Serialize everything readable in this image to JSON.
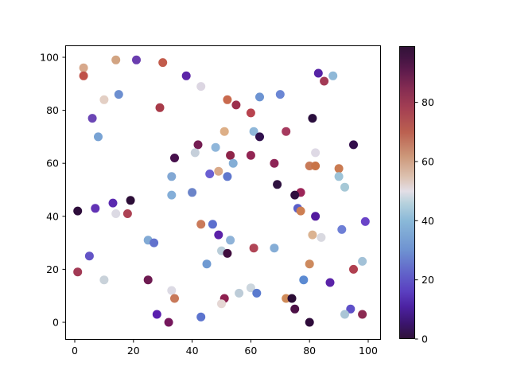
{
  "figure": {
    "background": "#ffffff"
  },
  "chart_data": {
    "type": "scatter",
    "title": "",
    "xlabel": "",
    "ylabel": "",
    "grid": false,
    "x_ticks": [
      0,
      20,
      40,
      60,
      80,
      100
    ],
    "y_ticks": [
      0,
      20,
      40,
      60,
      80,
      100
    ],
    "xlim": [
      -3.25,
      104.34
    ],
    "ylim": [
      -6.61,
      104.5
    ],
    "marker_diameter_px": 11,
    "points": [
      {
        "x": 14,
        "y": 99,
        "c": 62,
        "color": "#d2a482"
      },
      {
        "x": 21,
        "y": 99,
        "c": 14,
        "color": "#6a3daf"
      },
      {
        "x": 30,
        "y": 98,
        "c": 71,
        "color": "#c25b4b"
      },
      {
        "x": 3,
        "y": 96,
        "c": 62,
        "color": "#d7a88b"
      },
      {
        "x": 3,
        "y": 93,
        "c": 73,
        "color": "#bf5148"
      },
      {
        "x": 15,
        "y": 86,
        "c": 31,
        "color": "#6d8fd0"
      },
      {
        "x": 10,
        "y": 84,
        "c": 54,
        "color": "#e3cfc4"
      },
      {
        "x": 29,
        "y": 81,
        "c": 78,
        "color": "#a83b49"
      },
      {
        "x": 6,
        "y": 77,
        "c": 15,
        "color": "#6b46b5"
      },
      {
        "x": 8,
        "y": 70,
        "c": 33,
        "color": "#79a3d4"
      },
      {
        "x": 38,
        "y": 93,
        "c": 11,
        "color": "#5c25a8"
      },
      {
        "x": 43,
        "y": 89,
        "c": 50,
        "color": "#dcd6e2"
      },
      {
        "x": 52,
        "y": 84,
        "c": 67,
        "color": "#c96a4e"
      },
      {
        "x": 55,
        "y": 82,
        "c": 80,
        "color": "#9c2f4d"
      },
      {
        "x": 60,
        "y": 79,
        "c": 75,
        "color": "#b8434f"
      },
      {
        "x": 63,
        "y": 85,
        "c": 30,
        "color": "#6d94d2"
      },
      {
        "x": 51,
        "y": 72,
        "c": 60,
        "color": "#ddaf87"
      },
      {
        "x": 61,
        "y": 72,
        "c": 37,
        "color": "#8fb7d9"
      },
      {
        "x": 63,
        "y": 70,
        "c": 2,
        "color": "#31114e"
      },
      {
        "x": 42,
        "y": 67,
        "c": 88,
        "color": "#741d52"
      },
      {
        "x": 41,
        "y": 64,
        "c": 45,
        "color": "#c5cfda"
      },
      {
        "x": 48,
        "y": 66,
        "c": 38,
        "color": "#8fb6da"
      },
      {
        "x": 34,
        "y": 62,
        "c": 95,
        "color": "#46104c"
      },
      {
        "x": 53,
        "y": 63,
        "c": 82,
        "color": "#8e2449"
      },
      {
        "x": 60,
        "y": 63,
        "c": 84,
        "color": "#922553"
      },
      {
        "x": 54,
        "y": 60,
        "c": 35,
        "color": "#84aed6"
      },
      {
        "x": 49,
        "y": 57,
        "c": 61,
        "color": "#d9a988"
      },
      {
        "x": 46,
        "y": 56,
        "c": 21,
        "color": "#6a5fd2"
      },
      {
        "x": 52,
        "y": 55,
        "c": 27,
        "color": "#5f77cd"
      },
      {
        "x": 33,
        "y": 55,
        "c": 34,
        "color": "#82a8d4"
      },
      {
        "x": 40,
        "y": 49,
        "c": 29,
        "color": "#6b84c9"
      },
      {
        "x": 33,
        "y": 48,
        "c": 35,
        "color": "#84aed8"
      },
      {
        "x": 83,
        "y": 94,
        "c": 11,
        "color": "#5623a5"
      },
      {
        "x": 88,
        "y": 93,
        "c": 37,
        "color": "#8fb8d7"
      },
      {
        "x": 85,
        "y": 91,
        "c": 79,
        "color": "#a33a55"
      },
      {
        "x": 70,
        "y": 86,
        "c": 28,
        "color": "#6b86d4"
      },
      {
        "x": 81,
        "y": 77,
        "c": 1,
        "color": "#2a0e3d"
      },
      {
        "x": 72,
        "y": 72,
        "c": 78,
        "color": "#a63a5e"
      },
      {
        "x": 95,
        "y": 67,
        "c": 2,
        "color": "#330d4c"
      },
      {
        "x": 82,
        "y": 64,
        "c": 49,
        "color": "#ded9e5"
      },
      {
        "x": 68,
        "y": 60,
        "c": 84,
        "color": "#8e2456"
      },
      {
        "x": 80,
        "y": 59,
        "c": 66,
        "color": "#c87a58"
      },
      {
        "x": 82,
        "y": 59,
        "c": 67,
        "color": "#c87347"
      },
      {
        "x": 90,
        "y": 58,
        "c": 65,
        "color": "#ca7b52"
      },
      {
        "x": 90,
        "y": 55,
        "c": 41,
        "color": "#9dc3d7"
      },
      {
        "x": 69,
        "y": 52,
        "c": 2,
        "color": "#2f1240"
      },
      {
        "x": 92,
        "y": 51,
        "c": 42,
        "color": "#a6c8d6"
      },
      {
        "x": 1,
        "y": 42,
        "c": 1,
        "color": "#2e0d3b"
      },
      {
        "x": 7,
        "y": 43,
        "c": 13,
        "color": "#6233b5"
      },
      {
        "x": 13,
        "y": 45,
        "c": 12,
        "color": "#5b2ab0"
      },
      {
        "x": 19,
        "y": 46,
        "c": 99,
        "color": "#2c0e38"
      },
      {
        "x": 14,
        "y": 41,
        "c": 49,
        "color": "#dcdae4"
      },
      {
        "x": 18,
        "y": 41,
        "c": 76,
        "color": "#ad4254"
      },
      {
        "x": 25,
        "y": 31,
        "c": 34,
        "color": "#82aad5"
      },
      {
        "x": 27,
        "y": 30,
        "c": 25,
        "color": "#6272cd"
      },
      {
        "x": 5,
        "y": 25,
        "c": 19,
        "color": "#6354c6"
      },
      {
        "x": 1,
        "y": 19,
        "c": 77,
        "color": "#a23a55"
      },
      {
        "x": 10,
        "y": 16,
        "c": 44,
        "color": "#c9d2da"
      },
      {
        "x": 25,
        "y": 16,
        "c": 89,
        "color": "#6e1b51"
      },
      {
        "x": 28,
        "y": 3,
        "c": 10,
        "color": "#5a1fae"
      },
      {
        "x": 32,
        "y": 0,
        "c": 91,
        "color": "#75175c"
      },
      {
        "x": 43,
        "y": 37,
        "c": 65,
        "color": "#ca7a5a"
      },
      {
        "x": 47,
        "y": 37,
        "c": 24,
        "color": "#5c6fce"
      },
      {
        "x": 49,
        "y": 33,
        "c": 10,
        "color": "#5b21a8"
      },
      {
        "x": 53,
        "y": 31,
        "c": 36,
        "color": "#8fb3d8"
      },
      {
        "x": 50,
        "y": 27,
        "c": 44,
        "color": "#b9cdd9"
      },
      {
        "x": 52,
        "y": 26,
        "c": 96,
        "color": "#400e3e"
      },
      {
        "x": 61,
        "y": 28,
        "c": 76,
        "color": "#b04556"
      },
      {
        "x": 68,
        "y": 28,
        "c": 35,
        "color": "#85add6"
      },
      {
        "x": 45,
        "y": 22,
        "c": 31,
        "color": "#6f9ad2"
      },
      {
        "x": 33,
        "y": 12,
        "c": 49,
        "color": "#dcdae4"
      },
      {
        "x": 34,
        "y": 9,
        "c": 65,
        "color": "#c8795a"
      },
      {
        "x": 56,
        "y": 11,
        "c": 44,
        "color": "#bdccd8"
      },
      {
        "x": 60,
        "y": 13,
        "c": 43,
        "color": "#ccd6de"
      },
      {
        "x": 62,
        "y": 11,
        "c": 26,
        "color": "#5a7ace"
      },
      {
        "x": 51,
        "y": 9,
        "c": 85,
        "color": "#8e2050"
      },
      {
        "x": 50,
        "y": 7,
        "c": 53,
        "color": "#e5d7d4"
      },
      {
        "x": 43,
        "y": 2,
        "c": 25,
        "color": "#5c74ce"
      },
      {
        "x": 77,
        "y": 49,
        "c": 83,
        "color": "#9c2558"
      },
      {
        "x": 75,
        "y": 48,
        "c": 1,
        "color": "#300d3e"
      },
      {
        "x": 76,
        "y": 43,
        "c": 22,
        "color": "#5a5fc8"
      },
      {
        "x": 77,
        "y": 42,
        "c": 65,
        "color": "#cd7e52"
      },
      {
        "x": 82,
        "y": 40,
        "c": 9,
        "color": "#531a9e"
      },
      {
        "x": 99,
        "y": 38,
        "c": 17,
        "color": "#6a44c8"
      },
      {
        "x": 91,
        "y": 35,
        "c": 26,
        "color": "#6e7fd6"
      },
      {
        "x": 81,
        "y": 33,
        "c": 59,
        "color": "#dbb391"
      },
      {
        "x": 84,
        "y": 32,
        "c": 48,
        "color": "#d9d9e0"
      },
      {
        "x": 80,
        "y": 22,
        "c": 64,
        "color": "#cd8a5e"
      },
      {
        "x": 98,
        "y": 23,
        "c": 41,
        "color": "#a3c2d8"
      },
      {
        "x": 95,
        "y": 20,
        "c": 75,
        "color": "#b04050"
      },
      {
        "x": 78,
        "y": 16,
        "c": 30,
        "color": "#5b8ad2"
      },
      {
        "x": 87,
        "y": 15,
        "c": 11,
        "color": "#5a23a8"
      },
      {
        "x": 72,
        "y": 9,
        "c": 64,
        "color": "#cf8a58"
      },
      {
        "x": 74,
        "y": 9,
        "c": 99,
        "color": "#2b0c35"
      },
      {
        "x": 75,
        "y": 5,
        "c": 95,
        "color": "#4d1147"
      },
      {
        "x": 94,
        "y": 5,
        "c": 21,
        "color": "#5e50c8"
      },
      {
        "x": 92,
        "y": 3,
        "c": 41,
        "color": "#aac5d6"
      },
      {
        "x": 98,
        "y": 3,
        "c": 84,
        "color": "#8c2a52"
      },
      {
        "x": 80,
        "y": 0,
        "c": 0,
        "color": "#2e0b3a"
      }
    ],
    "colorbar": {
      "vmin": 0,
      "vmax": 99,
      "ticks": [
        0,
        20,
        40,
        60,
        80
      ],
      "gradient_stops": [
        {
          "v": 0,
          "color": "#2f1237"
        },
        {
          "v": 5,
          "color": "#3a146b"
        },
        {
          "v": 11,
          "color": "#4c22a2"
        },
        {
          "v": 16,
          "color": "#5a3fc0"
        },
        {
          "v": 22,
          "color": "#6161c9"
        },
        {
          "v": 30,
          "color": "#6e92d1"
        },
        {
          "v": 40,
          "color": "#8ab9d8"
        },
        {
          "v": 46,
          "color": "#b7d2dd"
        },
        {
          "v": 50,
          "color": "#e3dee6"
        },
        {
          "v": 55,
          "color": "#dcc0ae"
        },
        {
          "v": 62,
          "color": "#cc9678"
        },
        {
          "v": 70,
          "color": "#bb6050"
        },
        {
          "v": 78,
          "color": "#a43f53"
        },
        {
          "v": 85,
          "color": "#832b52"
        },
        {
          "v": 91,
          "color": "#5c1a4c"
        },
        {
          "v": 95,
          "color": "#431442"
        },
        {
          "v": 99,
          "color": "#311237"
        }
      ]
    }
  }
}
